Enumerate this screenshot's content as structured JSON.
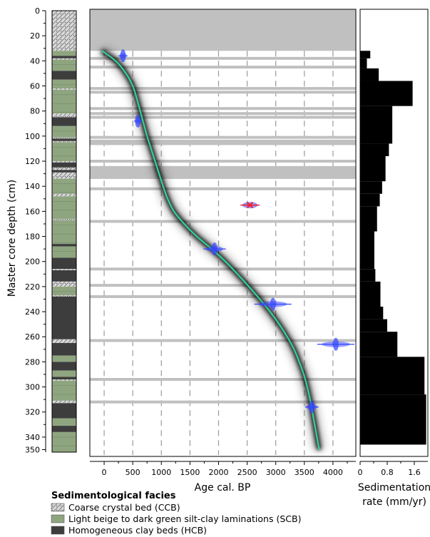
{
  "chart_data": [
    {
      "type": "lithology-column",
      "depth_range": [
        0,
        352
      ],
      "units": [
        {
          "facies": "CCB",
          "top": 0,
          "bottom": 32
        },
        {
          "facies": "SCB",
          "top": 32,
          "bottom": 36
        },
        {
          "facies": "HCB",
          "top": 36,
          "bottom": 38
        },
        {
          "facies": "CCB",
          "top": 38,
          "bottom": 39
        },
        {
          "facies": "SCB",
          "top": 39,
          "bottom": 48
        },
        {
          "facies": "HCB",
          "top": 48,
          "bottom": 55
        },
        {
          "facies": "SCB",
          "top": 55,
          "bottom": 62
        },
        {
          "facies": "CCB",
          "top": 62,
          "bottom": 63
        },
        {
          "facies": "SCB",
          "top": 63,
          "bottom": 82
        },
        {
          "facies": "CCB",
          "top": 82,
          "bottom": 85
        },
        {
          "facies": "HCB",
          "top": 85,
          "bottom": 92
        },
        {
          "facies": "SCB",
          "top": 92,
          "bottom": 101
        },
        {
          "facies": "CCB",
          "top": 101,
          "bottom": 102
        },
        {
          "facies": "HCB",
          "top": 102,
          "bottom": 104
        },
        {
          "facies": "CCB",
          "top": 104,
          "bottom": 105
        },
        {
          "facies": "SCB",
          "top": 105,
          "bottom": 120
        },
        {
          "facies": "CCB",
          "top": 120,
          "bottom": 121
        },
        {
          "facies": "HCB",
          "top": 121,
          "bottom": 125
        },
        {
          "facies": "CCB",
          "top": 125,
          "bottom": 127
        },
        {
          "facies": "HCB",
          "top": 127,
          "bottom": 129
        },
        {
          "facies": "CCB",
          "top": 129,
          "bottom": 134
        },
        {
          "facies": "SCB",
          "top": 134,
          "bottom": 146
        },
        {
          "facies": "CCB",
          "top": 146,
          "bottom": 148
        },
        {
          "facies": "SCB",
          "top": 148,
          "bottom": 166
        },
        {
          "facies": "CCB",
          "top": 166,
          "bottom": 167
        },
        {
          "facies": "SCB",
          "top": 167,
          "bottom": 186
        },
        {
          "facies": "HCB",
          "top": 186,
          "bottom": 188
        },
        {
          "facies": "SCB",
          "top": 188,
          "bottom": 197
        },
        {
          "facies": "HCB",
          "top": 197,
          "bottom": 206
        },
        {
          "facies": "CCB",
          "top": 206,
          "bottom": 207
        },
        {
          "facies": "HCB",
          "top": 207,
          "bottom": 216
        },
        {
          "facies": "CCB",
          "top": 216,
          "bottom": 220
        },
        {
          "facies": "SCB",
          "top": 220,
          "bottom": 227
        },
        {
          "facies": "CCB",
          "top": 227,
          "bottom": 228
        },
        {
          "facies": "HCB",
          "top": 228,
          "bottom": 262
        },
        {
          "facies": "CCB",
          "top": 262,
          "bottom": 265
        },
        {
          "facies": "HCB",
          "top": 265,
          "bottom": 275
        },
        {
          "facies": "SCB",
          "top": 275,
          "bottom": 280
        },
        {
          "facies": "HCB",
          "top": 280,
          "bottom": 287
        },
        {
          "facies": "SCB",
          "top": 287,
          "bottom": 292
        },
        {
          "facies": "HCB",
          "top": 292,
          "bottom": 294
        },
        {
          "facies": "CCB",
          "top": 294,
          "bottom": 295
        },
        {
          "facies": "SCB",
          "top": 295,
          "bottom": 311
        },
        {
          "facies": "CCB",
          "top": 311,
          "bottom": 313
        },
        {
          "facies": "HCB",
          "top": 313,
          "bottom": 325
        },
        {
          "facies": "SCB",
          "top": 325,
          "bottom": 331
        },
        {
          "facies": "HCB",
          "top": 331,
          "bottom": 336
        },
        {
          "facies": "SCB",
          "top": 336,
          "bottom": 352
        }
      ]
    },
    {
      "type": "line",
      "title": "",
      "ylabel": "Master core depth (cm)",
      "xlabel": "Age cal. BP",
      "xlim": [
        -250,
        4400
      ],
      "ylim": [
        352,
        0
      ],
      "y_reversed": true,
      "x_ticks": [
        0,
        500,
        1000,
        1500,
        2000,
        2500,
        3000,
        3500,
        4000
      ],
      "y_ticks": [
        0,
        20,
        40,
        60,
        80,
        100,
        120,
        140,
        160,
        180,
        200,
        220,
        240,
        260,
        280,
        300,
        320,
        340,
        350
      ],
      "grid_x": true,
      "unsampled_interval": {
        "top": 0,
        "bottom": 32
      },
      "instantaneous_events": [
        38,
        45,
        62,
        65,
        78,
        82,
        85,
        101,
        104,
        106,
        120,
        125,
        127,
        129,
        131,
        133,
        142,
        168,
        206,
        219,
        228,
        263,
        294,
        312
      ],
      "age_model": {
        "depth": [
          32,
          40,
          50,
          60,
          70,
          80,
          90,
          100,
          110,
          120,
          130,
          140,
          150,
          160,
          170,
          180,
          190,
          200,
          210,
          220,
          230,
          240,
          250,
          260,
          270,
          280,
          290,
          300,
          310,
          320,
          330,
          340,
          350
        ],
        "age": [
          -40,
          200,
          380,
          500,
          570,
          630,
          690,
          750,
          820,
          890,
          960,
          1030,
          1110,
          1220,
          1400,
          1620,
          1880,
          2120,
          2330,
          2530,
          2720,
          2900,
          3060,
          3200,
          3320,
          3410,
          3490,
          3550,
          3600,
          3640,
          3680,
          3720,
          3760
        ]
      },
      "dates": [
        {
          "depth": 36,
          "age": 330,
          "err": 60,
          "rejected": false
        },
        {
          "depth": 88,
          "age": 590,
          "err": 50,
          "rejected": false
        },
        {
          "depth": 155,
          "age": 2550,
          "err": 120,
          "rejected": true
        },
        {
          "depth": 190,
          "age": 1930,
          "err": 150,
          "rejected": false
        },
        {
          "depth": 234,
          "age": 2950,
          "err": 250,
          "rejected": false
        },
        {
          "depth": 266,
          "age": 4050,
          "err": 250,
          "rejected": false
        },
        {
          "depth": 316,
          "age": 3630,
          "err": 90,
          "rejected": false
        }
      ]
    },
    {
      "type": "bar",
      "orientation": "horizontal-step",
      "xlabel": "Sedimentation rate (mm/yr)",
      "xlabel_lines": [
        "Sedimentation",
        "rate (mm/yr)"
      ],
      "xlim": [
        0,
        2.0
      ],
      "x_ticks": [
        "0",
        "0.8",
        "1.6"
      ],
      "x_tick_values": [
        0,
        0.8,
        1.6
      ],
      "bins": [
        {
          "top": 32,
          "bottom": 38,
          "rate": 0.3
        },
        {
          "top": 38,
          "bottom": 46,
          "rate": 0.2
        },
        {
          "top": 46,
          "bottom": 56,
          "rate": 0.55
        },
        {
          "top": 56,
          "bottom": 76,
          "rate": 1.55
        },
        {
          "top": 76,
          "bottom": 106,
          "rate": 0.95
        },
        {
          "top": 106,
          "bottom": 116,
          "rate": 0.85
        },
        {
          "top": 116,
          "bottom": 136,
          "rate": 0.75
        },
        {
          "top": 136,
          "bottom": 146,
          "rate": 0.65
        },
        {
          "top": 146,
          "bottom": 156,
          "rate": 0.58
        },
        {
          "top": 156,
          "bottom": 176,
          "rate": 0.5
        },
        {
          "top": 176,
          "bottom": 206,
          "rate": 0.42
        },
        {
          "top": 206,
          "bottom": 216,
          "rate": 0.45
        },
        {
          "top": 216,
          "bottom": 236,
          "rate": 0.6
        },
        {
          "top": 236,
          "bottom": 246,
          "rate": 0.68
        },
        {
          "top": 246,
          "bottom": 256,
          "rate": 0.8
        },
        {
          "top": 256,
          "bottom": 276,
          "rate": 1.1
        },
        {
          "top": 276,
          "bottom": 306,
          "rate": 1.9
        },
        {
          "top": 306,
          "bottom": 346,
          "rate": 1.95
        }
      ]
    }
  ],
  "legend": {
    "title": "Sedimentological facies",
    "items": [
      {
        "key": "CCB",
        "label": "Coarse crystal bed (CCB)"
      },
      {
        "key": "SCB",
        "label": "Light beige to dark green silt-clay laminations (SCB)"
      },
      {
        "key": "HCB",
        "label": "Homogeneous clay beds (HCB)"
      }
    ]
  },
  "colors": {
    "SCB": "#8fa580",
    "HCB": "#3d3d3d",
    "CCB": "#d4d4d4",
    "gray_band": "#c0c0c0",
    "age_curve": "#2fd39a",
    "date_blue": "#3344ff",
    "date_rejected": "#ff1a1a",
    "bars": "#000000"
  }
}
